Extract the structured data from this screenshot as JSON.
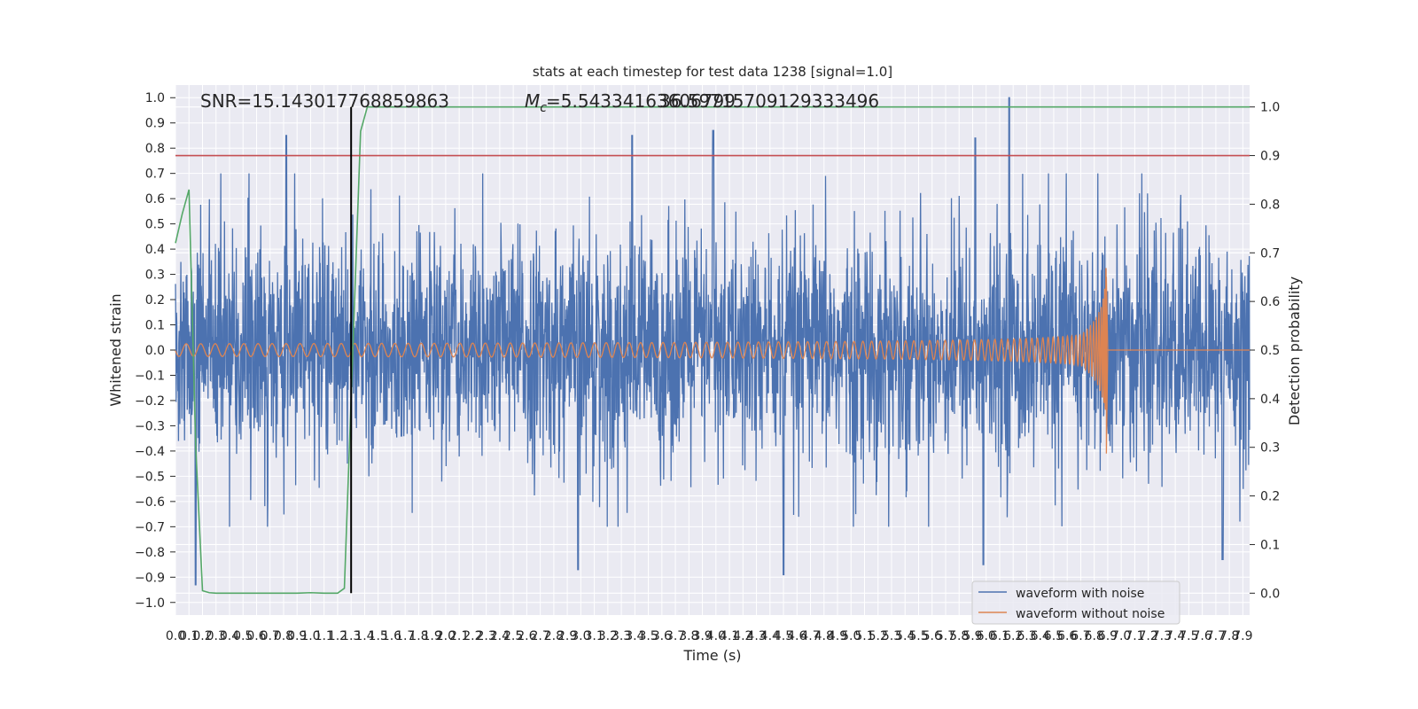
{
  "chart_data": {
    "type": "line",
    "title": "stats at each timestep for test data 1238 [signal=1.0]",
    "xlabel": "Time (s)",
    "ylabel": "Whitened strain",
    "y2label": "Detection probability",
    "xlim": [
      0.0,
      7.95
    ],
    "ylim": [
      -1.05,
      1.05
    ],
    "y2lim": [
      -0.045,
      1.045
    ],
    "grid": true,
    "x_ticks": [
      "0.0",
      "0.1",
      "0.2",
      "0.3",
      "0.4",
      "0.5",
      "0.6",
      "0.7",
      "0.8",
      "0.9",
      "1.0",
      "1.1",
      "1.2",
      "1.3",
      "1.4",
      "1.5",
      "1.6",
      "1.7",
      "1.8",
      "1.9",
      "2.0",
      "2.1",
      "2.2",
      "2.3",
      "2.4",
      "2.5",
      "2.6",
      "2.7",
      "2.8",
      "2.9",
      "3.0",
      "3.1",
      "3.2",
      "3.3",
      "3.4",
      "3.5",
      "3.6",
      "3.7",
      "3.8",
      "3.9",
      "4.0",
      "4.1",
      "4.2",
      "4.3",
      "4.4",
      "4.5",
      "4.6",
      "4.7",
      "4.8",
      "4.9",
      "5.0",
      "5.1",
      "5.2",
      "5.3",
      "5.4",
      "5.5",
      "5.6",
      "5.7",
      "5.8",
      "5.9",
      "6.0",
      "6.1",
      "6.2",
      "6.3",
      "6.4",
      "6.5",
      "6.6",
      "6.7",
      "6.8",
      "6.9",
      "7.0",
      "7.1",
      "7.2",
      "7.3",
      "7.4",
      "7.5",
      "7.6",
      "7.7",
      "7.8",
      "7.9"
    ],
    "y_ticks": [
      "1.0",
      "0.9",
      "0.8",
      "0.7",
      "0.6",
      "0.5",
      "0.4",
      "0.3",
      "0.2",
      "0.1",
      "0.0",
      "−0.1",
      "−0.2",
      "−0.3",
      "−0.4",
      "−0.5",
      "−0.6",
      "−0.7",
      "−0.8",
      "−0.9",
      "−1.0"
    ],
    "y2_ticks": [
      "1.0",
      "0.9",
      "0.8",
      "0.7",
      "0.6",
      "0.5",
      "0.4",
      "0.3",
      "0.2",
      "0.1",
      "0.0"
    ],
    "annotations": {
      "snr": "SNR=15.143017768859863",
      "mc": "=5.54334163606799",
      "mc_symbol": "M",
      "mc_sub": "c",
      "extra": "36.59715709129333496"
    },
    "legend": {
      "placement": "bottom-right",
      "entries": [
        "waveform with noise",
        "waveform without noise"
      ]
    },
    "colors": {
      "noise": "#4c72b0",
      "clean": "#dd8452",
      "prob": "#55a868",
      "threshold": "#c44e52",
      "marker": "#000000",
      "bg": "#eaeaf2"
    },
    "series": [
      {
        "name": "waveform with noise",
        "axis": "left",
        "description_values": {
          "typical_range": [
            -0.62,
            0.62
          ],
          "peaks": [
            [
              0.82,
              0.85
            ],
            [
              3.38,
              0.85
            ],
            [
              3.98,
              0.87
            ],
            [
              6.17,
              1.0
            ],
            [
              5.92,
              0.84
            ],
            [
              0.15,
              -0.93
            ],
            [
              2.98,
              -0.87
            ],
            [
              5.98,
              -0.85
            ],
            [
              4.5,
              -0.89
            ],
            [
              7.75,
              -0.83
            ]
          ]
        }
      },
      {
        "name": "waveform without noise",
        "axis": "left",
        "description_values": {
          "amplitude_start": 0.025,
          "peak_time": 6.88,
          "peak_max": 0.29,
          "peak_min": -0.41,
          "after_merger": 0.0
        }
      },
      {
        "name": "",
        "axis": "right",
        "x": [
          0.0,
          0.05,
          0.1,
          0.15,
          0.2,
          0.25,
          0.3,
          0.5,
          0.7,
          0.9,
          1.0,
          1.1,
          1.15,
          1.2,
          1.25,
          1.3,
          1.37,
          1.42,
          1.5,
          7.95
        ],
        "values": [
          0.72,
          0.78,
          0.83,
          0.3,
          0.005,
          0.001,
          0.0,
          0.0,
          0.0,
          0.0,
          0.001,
          0.0,
          0.0,
          0.0,
          0.01,
          0.4,
          0.95,
          1.0,
          1.0,
          1.0
        ]
      }
    ],
    "threshold_y2": 0.9,
    "marker_x": 1.3
  }
}
